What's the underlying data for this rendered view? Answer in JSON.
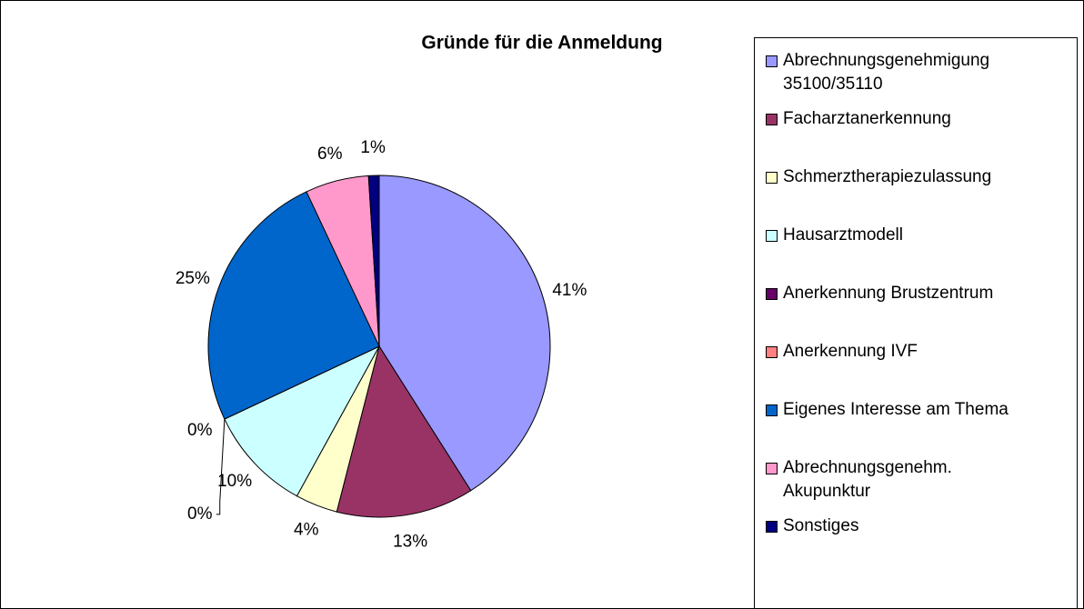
{
  "chart_data": {
    "type": "pie",
    "title": "Gründe für die Anmeldung",
    "categories": [
      "Abrechnungsgenehmigung 35100/35110",
      "Facharztanerkennung",
      "Schmerztherapiezulassung",
      "Hausarztmodell",
      "Anerkennung Brustzentrum",
      "Anerkennung IVF",
      "Eigenes Interesse am Thema",
      "Abrechnungsgenehm. Akupunktur",
      "Sonstiges"
    ],
    "values": [
      41,
      13,
      4,
      10,
      0,
      0,
      25,
      6,
      1
    ],
    "value_labels": [
      "41%",
      "13%",
      "4%",
      "10%",
      "0%",
      "0%",
      "25%",
      "6%",
      "1%"
    ],
    "colors": [
      "#9999ff",
      "#993366",
      "#ffffcc",
      "#ccffff",
      "#660066",
      "#ff8080",
      "#0066cc",
      "#ff99cc",
      "#000080"
    ],
    "legend": "right"
  }
}
